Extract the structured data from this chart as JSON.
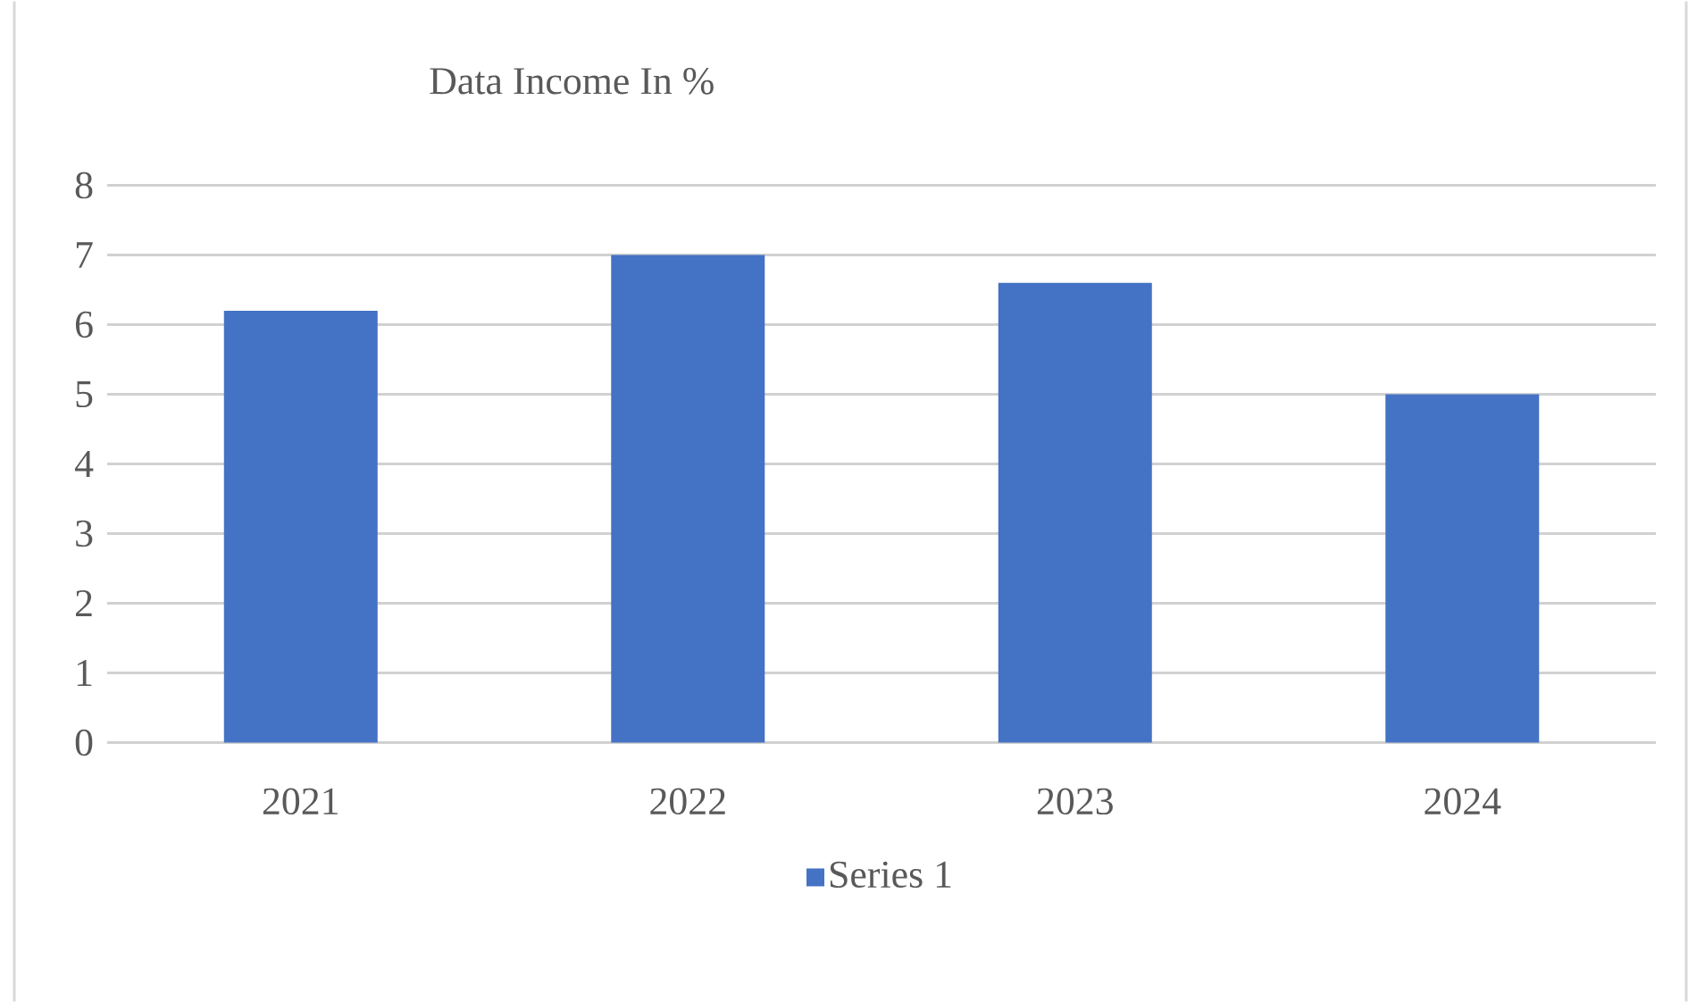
{
  "chart_data": {
    "type": "bar",
    "title": "Data Income In %",
    "categories": [
      "2021",
      "2022",
      "2023",
      "2024"
    ],
    "series": [
      {
        "name": "Series 1",
        "color": "#4472c4",
        "values": [
          6.2,
          7.0,
          6.6,
          5.0
        ]
      }
    ],
    "ylim": [
      0,
      8
    ],
    "yticks": [
      0,
      1,
      2,
      3,
      4,
      5,
      6,
      7,
      8
    ],
    "grid": "y",
    "legend": "bottom"
  }
}
